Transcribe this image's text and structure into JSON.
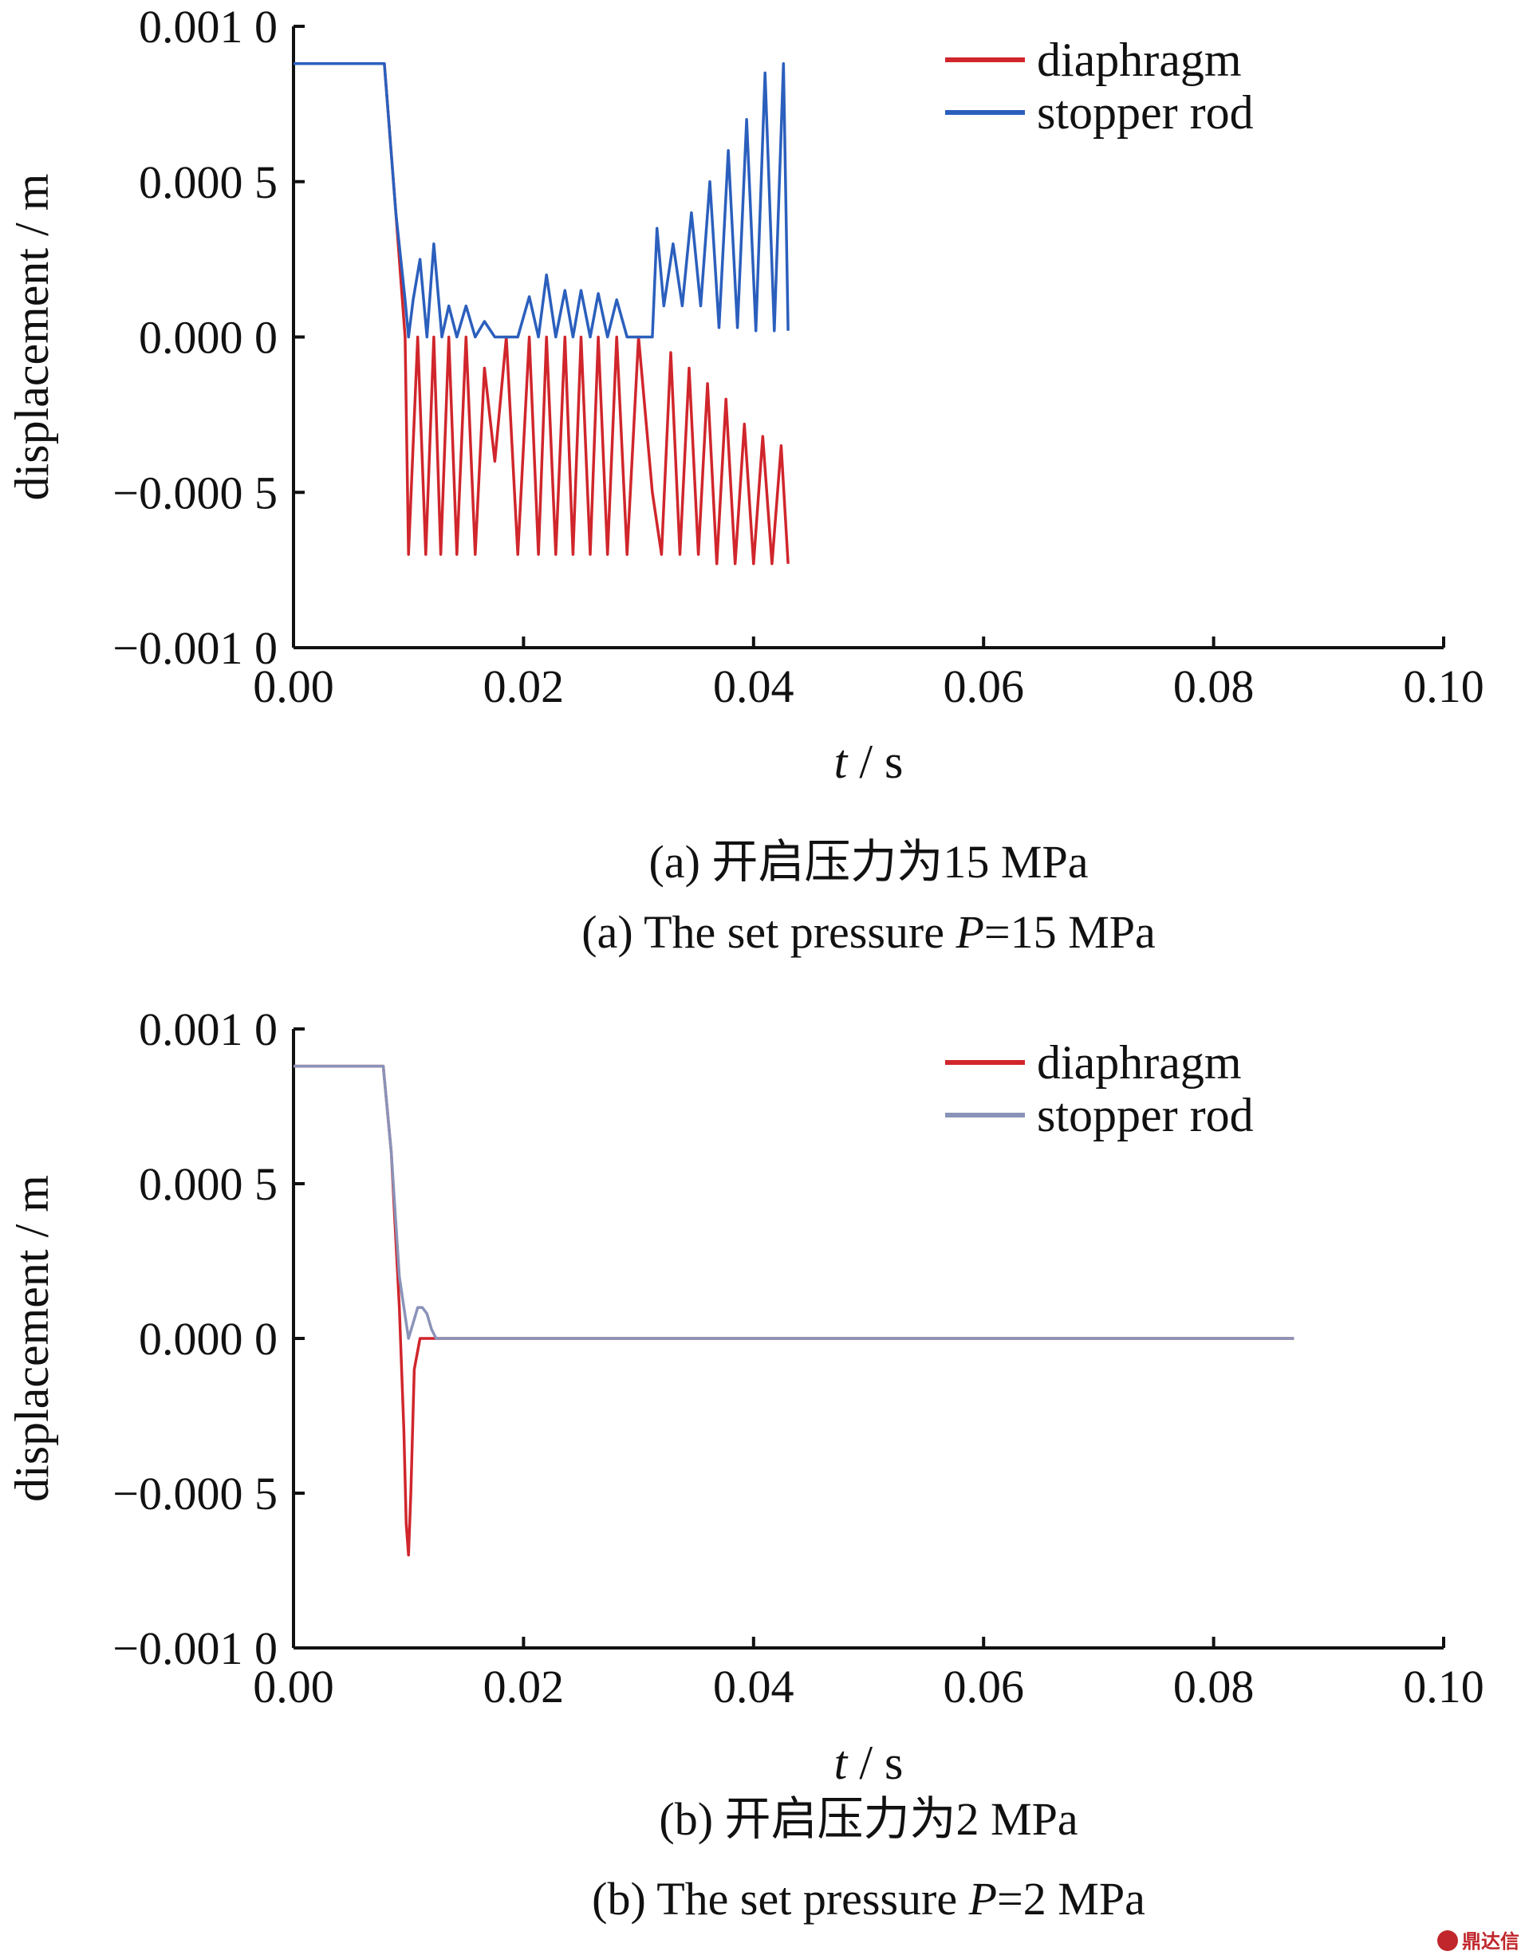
{
  "chart_data": [
    {
      "type": "line",
      "ylabel": "displacement / m",
      "xlabel_var": "t",
      "xlabel_unit": " / s",
      "xlim": [
        0,
        0.1
      ],
      "ylim": [
        -0.001,
        0.001
      ],
      "xticks": [
        "0.00",
        "0.02",
        "0.04",
        "0.06",
        "0.08",
        "0.10"
      ],
      "yticks": [
        "0.001 0",
        "0.000 5",
        "0.000 0",
        "−0.000 5",
        "−0.001 0"
      ],
      "legend_position": "top-right",
      "caption_cn": "(a) 开启压力为15 MPa",
      "caption_en_pre": "(a) The set pressure ",
      "caption_en_var": "P",
      "caption_en_post": "=15 MPa",
      "series": [
        {
          "name": "diaphragm",
          "color": "#d0262c",
          "x": [
            0,
            0.0079,
            0.0089,
            0.0097,
            0.01,
            0.0108,
            0.0115,
            0.0122,
            0.0128,
            0.0135,
            0.0142,
            0.015,
            0.0158,
            0.0166,
            0.0175,
            0.0185,
            0.0195,
            0.0205,
            0.0213,
            0.022,
            0.0228,
            0.0236,
            0.0243,
            0.025,
            0.0258,
            0.0265,
            0.0273,
            0.0281,
            0.029,
            0.03,
            0.0312,
            0.032,
            0.0328,
            0.0336,
            0.0344,
            0.0352,
            0.036,
            0.0368,
            0.0376,
            0.0384,
            0.0392,
            0.04,
            0.0408,
            0.0416,
            0.0424,
            0.043
          ],
          "y": [
            0.00088,
            0.00088,
            0.0004,
            0,
            -0.0007,
            0,
            -0.0007,
            0,
            -0.0007,
            0,
            -0.0007,
            0,
            -0.0007,
            -0.0001,
            -0.0004,
            0,
            -0.0007,
            0,
            -0.0007,
            0,
            -0.0007,
            0,
            -0.0007,
            0,
            -0.0007,
            0,
            -0.0007,
            0,
            -0.0007,
            0,
            -0.0005,
            -0.0007,
            -5e-05,
            -0.0007,
            -0.0001,
            -0.0007,
            -0.00015,
            -0.00073,
            -0.0002,
            -0.00073,
            -0.00028,
            -0.00073,
            -0.00032,
            -0.00073,
            -0.00035,
            -0.00073
          ]
        },
        {
          "name": "stopper rod",
          "color": "#2b5fbd",
          "x": [
            0,
            0.0079,
            0.0089,
            0.0097,
            0.01,
            0.0104,
            0.011,
            0.0116,
            0.0122,
            0.0129,
            0.0135,
            0.0142,
            0.015,
            0.0158,
            0.0166,
            0.0175,
            0.0185,
            0.0195,
            0.0205,
            0.0213,
            0.022,
            0.0228,
            0.0236,
            0.0243,
            0.025,
            0.0258,
            0.0265,
            0.0273,
            0.0281,
            0.029,
            0.03,
            0.0312,
            0.0316,
            0.0322,
            0.033,
            0.0338,
            0.0346,
            0.0354,
            0.0362,
            0.037,
            0.0378,
            0.0386,
            0.0394,
            0.0402,
            0.041,
            0.0418,
            0.0426,
            0.043
          ],
          "y": [
            0.00088,
            0.00088,
            0.0004,
            0.00012,
            0,
            0.00012,
            0.00025,
            0,
            0.0003,
            0,
            0.0001,
            0,
            0.0001,
            0,
            5e-05,
            0,
            0,
            0,
            0.00013,
            0,
            0.0002,
            0,
            0.00015,
            0,
            0.00015,
            0,
            0.00014,
            0,
            0.00012,
            0,
            0,
            0,
            0.00035,
            0.0001,
            0.0003,
            0.0001,
            0.0004,
            0.0001,
            0.0005,
            3e-05,
            0.0006,
            3e-05,
            0.0007,
            2e-05,
            0.00085,
            2e-05,
            0.00088,
            2e-05
          ]
        }
      ]
    },
    {
      "type": "line",
      "ylabel": "displacement / m",
      "xlabel_var": "t",
      "xlabel_unit": " / s",
      "xlim": [
        0,
        0.1
      ],
      "ylim": [
        -0.001,
        0.001
      ],
      "xticks": [
        "0.00",
        "0.02",
        "0.04",
        "0.06",
        "0.08",
        "0.10"
      ],
      "yticks": [
        "0.001 0",
        "0.000 5",
        "0.000 0",
        "−0.000 5",
        "−0.001 0"
      ],
      "legend_position": "top-right",
      "caption_cn": "(b) 开启压力为2 MPa",
      "caption_en_pre": "(b) The set pressure ",
      "caption_en_var": "P",
      "caption_en_post": "=2 MPa",
      "series": [
        {
          "name": "diaphragm",
          "color": "#d0262c",
          "x": [
            0,
            0.0078,
            0.0085,
            0.0092,
            0.0096,
            0.0098,
            0.01,
            0.0102,
            0.0105,
            0.011,
            0.0116,
            0.0124,
            0.087
          ],
          "y": [
            0.00088,
            0.00088,
            0.0006,
            0.0001,
            -0.0003,
            -0.0006,
            -0.0007,
            -0.0005,
            -0.0001,
            0,
            0,
            0,
            0
          ]
        },
        {
          "name": "stopper rod",
          "color": "#8a93b8",
          "x": [
            0,
            0.0078,
            0.0085,
            0.0092,
            0.0096,
            0.01,
            0.0104,
            0.0108,
            0.0112,
            0.0116,
            0.012,
            0.0124,
            0.087
          ],
          "y": [
            0.00088,
            0.00088,
            0.0006,
            0.0002,
            0.0001,
            0,
            5e-05,
            0.0001,
            0.0001,
            8e-05,
            3e-05,
            0,
            0
          ]
        }
      ]
    }
  ],
  "watermark_text": "鼎达信"
}
